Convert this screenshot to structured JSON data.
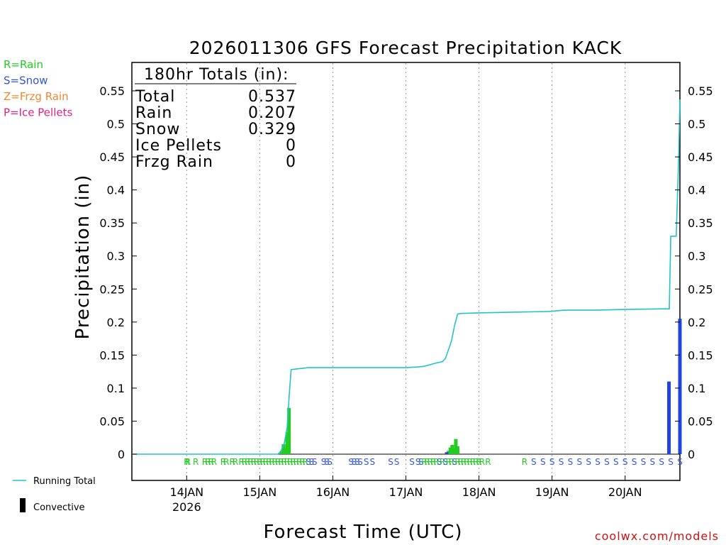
{
  "chart_data": {
    "type": "bar",
    "title": "2026011306 GFS Forecast Precipitation KACK",
    "xlabel": "Forecast Time (UTC)",
    "ylabel": "Precipitation (in)",
    "ylim": [
      -0.04,
      0.59
    ],
    "y_ticks": [
      "0",
      "0.05",
      "0.1",
      "0.15",
      "0.2",
      "0.25",
      "0.3",
      "0.35",
      "0.4",
      "0.45",
      "0.5",
      "0.55"
    ],
    "x_range_hours": [
      0,
      180
    ],
    "x_ticks": [
      {
        "hour": 18,
        "label": "14JAN",
        "sublabel": "2026"
      },
      {
        "hour": 42,
        "label": "15JAN",
        "sublabel": ""
      },
      {
        "hour": 66,
        "label": "16JAN",
        "sublabel": ""
      },
      {
        "hour": 90,
        "label": "17JAN",
        "sublabel": ""
      },
      {
        "hour": 114,
        "label": "18JAN",
        "sublabel": ""
      },
      {
        "hour": 138,
        "label": "19JAN",
        "sublabel": ""
      },
      {
        "hour": 162,
        "label": "20JAN",
        "sublabel": ""
      }
    ],
    "grid": "vertical dotted",
    "ptype_legend": [
      {
        "text": "R=Rain",
        "color": "#22cc22"
      },
      {
        "text": "S=Snow",
        "color": "#3355dd"
      },
      {
        "text": "Z=Frzg Rain",
        "color": "#ee8833"
      },
      {
        "text": "P=Ice Pellets",
        "color": "#dd2288"
      }
    ],
    "totals": {
      "header": "180hr Totals (in):",
      "rows": [
        {
          "label": "Total",
          "value": "0.537"
        },
        {
          "label": "Rain",
          "value": "0.207"
        },
        {
          "label": "Snow",
          "value": "0.329"
        },
        {
          "label": "Ice Pellets",
          "value": "0"
        },
        {
          "label": "Frzg Rain",
          "value": "0"
        }
      ]
    },
    "series": [
      {
        "name": "Running Total",
        "kind": "line",
        "color": "#22c3c8",
        "points": [
          [
            0,
            0
          ],
          [
            48,
            0
          ],
          [
            49,
            0.005
          ],
          [
            50,
            0.015
          ],
          [
            51,
            0.04
          ],
          [
            51.7,
            0.09
          ],
          [
            52.3,
            0.128
          ],
          [
            54,
            0.129
          ],
          [
            58,
            0.131
          ],
          [
            66,
            0.131
          ],
          [
            80,
            0.131
          ],
          [
            90,
            0.131
          ],
          [
            94,
            0.132
          ],
          [
            96,
            0.133
          ],
          [
            100,
            0.138
          ],
          [
            102,
            0.14
          ],
          [
            103,
            0.145
          ],
          [
            104.5,
            0.165
          ],
          [
            105,
            0.172
          ],
          [
            106,
            0.195
          ],
          [
            107,
            0.212
          ],
          [
            108,
            0.213
          ],
          [
            115,
            0.214
          ],
          [
            125,
            0.215
          ],
          [
            137,
            0.216
          ],
          [
            142,
            0.218
          ],
          [
            152,
            0.218
          ],
          [
            162,
            0.219
          ],
          [
            175,
            0.22
          ],
          [
            176.5,
            0.22
          ],
          [
            177,
            0.33
          ],
          [
            178.8,
            0.33
          ],
          [
            179.6,
            0.45
          ],
          [
            180,
            0.537
          ]
        ]
      },
      {
        "name": "Rain",
        "kind": "bar",
        "color": "#22cc22",
        "bars": [
          [
            49.2,
            0.004
          ],
          [
            49.8,
            0.015
          ],
          [
            50.4,
            0.008
          ],
          [
            51,
            0.033
          ],
          [
            51.6,
            0.07
          ],
          [
            104,
            0.005
          ],
          [
            104.6,
            0.01
          ],
          [
            105.2,
            0.014
          ],
          [
            105.8,
            0.009
          ],
          [
            106.4,
            0.023
          ],
          [
            107,
            0.012
          ]
        ]
      },
      {
        "name": "Snow",
        "kind": "bar",
        "color": "#2244dd",
        "bars": [
          [
            103.4,
            0.003
          ],
          [
            176.4,
            0.11
          ],
          [
            180,
            0.205
          ]
        ]
      }
    ],
    "ptype_row": [
      {
        "hour": 18,
        "code": "R"
      },
      {
        "hour": 18.4,
        "code": "R"
      },
      {
        "hour": 21,
        "code": "R"
      },
      {
        "hour": 24,
        "code": "R"
      },
      {
        "hour": 25,
        "code": "R"
      },
      {
        "hour": 26,
        "code": "R"
      },
      {
        "hour": 27,
        "code": "R"
      },
      {
        "hour": 30,
        "code": "R"
      },
      {
        "hour": 31,
        "code": "R"
      },
      {
        "hour": 33,
        "code": "R"
      },
      {
        "hour": 34,
        "code": "R"
      },
      {
        "hour": 36,
        "code": "R"
      },
      {
        "hour": 37,
        "code": "R"
      },
      {
        "hour": 38,
        "code": "R"
      },
      {
        "hour": 39,
        "code": "R"
      },
      {
        "hour": 40,
        "code": "R"
      },
      {
        "hour": 41,
        "code": "R"
      },
      {
        "hour": 42,
        "code": "R"
      },
      {
        "hour": 43,
        "code": "R"
      },
      {
        "hour": 44,
        "code": "R"
      },
      {
        "hour": 45,
        "code": "R"
      },
      {
        "hour": 46,
        "code": "R"
      },
      {
        "hour": 47,
        "code": "R"
      },
      {
        "hour": 48,
        "code": "R"
      },
      {
        "hour": 49,
        "code": "R"
      },
      {
        "hour": 50,
        "code": "R"
      },
      {
        "hour": 51,
        "code": "R"
      },
      {
        "hour": 52,
        "code": "R"
      },
      {
        "hour": 53,
        "code": "R"
      },
      {
        "hour": 54,
        "code": "R"
      },
      {
        "hour": 55,
        "code": "R"
      },
      {
        "hour": 56,
        "code": "R"
      },
      {
        "hour": 57,
        "code": "R"
      },
      {
        "hour": 58,
        "code": "S"
      },
      {
        "hour": 59,
        "code": "S"
      },
      {
        "hour": 60,
        "code": "S"
      },
      {
        "hour": 63,
        "code": "S"
      },
      {
        "hour": 64,
        "code": "S"
      },
      {
        "hour": 65,
        "code": "S"
      },
      {
        "hour": 72,
        "code": "S"
      },
      {
        "hour": 73,
        "code": "S"
      },
      {
        "hour": 74,
        "code": "S"
      },
      {
        "hour": 75,
        "code": "S"
      },
      {
        "hour": 77,
        "code": "S"
      },
      {
        "hour": 79,
        "code": "S"
      },
      {
        "hour": 85,
        "code": "S"
      },
      {
        "hour": 87,
        "code": "S"
      },
      {
        "hour": 92,
        "code": "S"
      },
      {
        "hour": 94,
        "code": "S"
      },
      {
        "hour": 95,
        "code": "S"
      },
      {
        "hour": 96,
        "code": "R"
      },
      {
        "hour": 97,
        "code": "R"
      },
      {
        "hour": 98,
        "code": "R"
      },
      {
        "hour": 99,
        "code": "R"
      },
      {
        "hour": 100,
        "code": "R"
      },
      {
        "hour": 101,
        "code": "S"
      },
      {
        "hour": 102,
        "code": "R"
      },
      {
        "hour": 103,
        "code": "S"
      },
      {
        "hour": 104,
        "code": "R"
      },
      {
        "hour": 105,
        "code": "R"
      },
      {
        "hour": 106,
        "code": "S"
      },
      {
        "hour": 107,
        "code": "R"
      },
      {
        "hour": 108,
        "code": "R"
      },
      {
        "hour": 109,
        "code": "R"
      },
      {
        "hour": 110,
        "code": "R"
      },
      {
        "hour": 111,
        "code": "R"
      },
      {
        "hour": 112,
        "code": "R"
      },
      {
        "hour": 113,
        "code": "R"
      },
      {
        "hour": 114,
        "code": "R"
      },
      {
        "hour": 115,
        "code": "R"
      },
      {
        "hour": 117,
        "code": "R"
      },
      {
        "hour": 129,
        "code": "R"
      },
      {
        "hour": 132,
        "code": "S"
      },
      {
        "hour": 135,
        "code": "S"
      },
      {
        "hour": 138,
        "code": "S"
      },
      {
        "hour": 141,
        "code": "S"
      },
      {
        "hour": 144,
        "code": "S"
      },
      {
        "hour": 147,
        "code": "S"
      },
      {
        "hour": 150,
        "code": "S"
      },
      {
        "hour": 153,
        "code": "S"
      },
      {
        "hour": 156,
        "code": "S"
      },
      {
        "hour": 159,
        "code": "S"
      },
      {
        "hour": 162,
        "code": "S"
      },
      {
        "hour": 165,
        "code": "S"
      },
      {
        "hour": 168,
        "code": "S"
      },
      {
        "hour": 171,
        "code": "S"
      },
      {
        "hour": 174,
        "code": "S"
      },
      {
        "hour": 177,
        "code": "S"
      },
      {
        "hour": 180,
        "code": "S"
      }
    ],
    "bottom_legend": [
      {
        "text": "Running Total",
        "color": "#22c3c8"
      },
      {
        "text": "Convective",
        "color": "#000000"
      }
    ]
  },
  "credit": "coolwx.com/models"
}
